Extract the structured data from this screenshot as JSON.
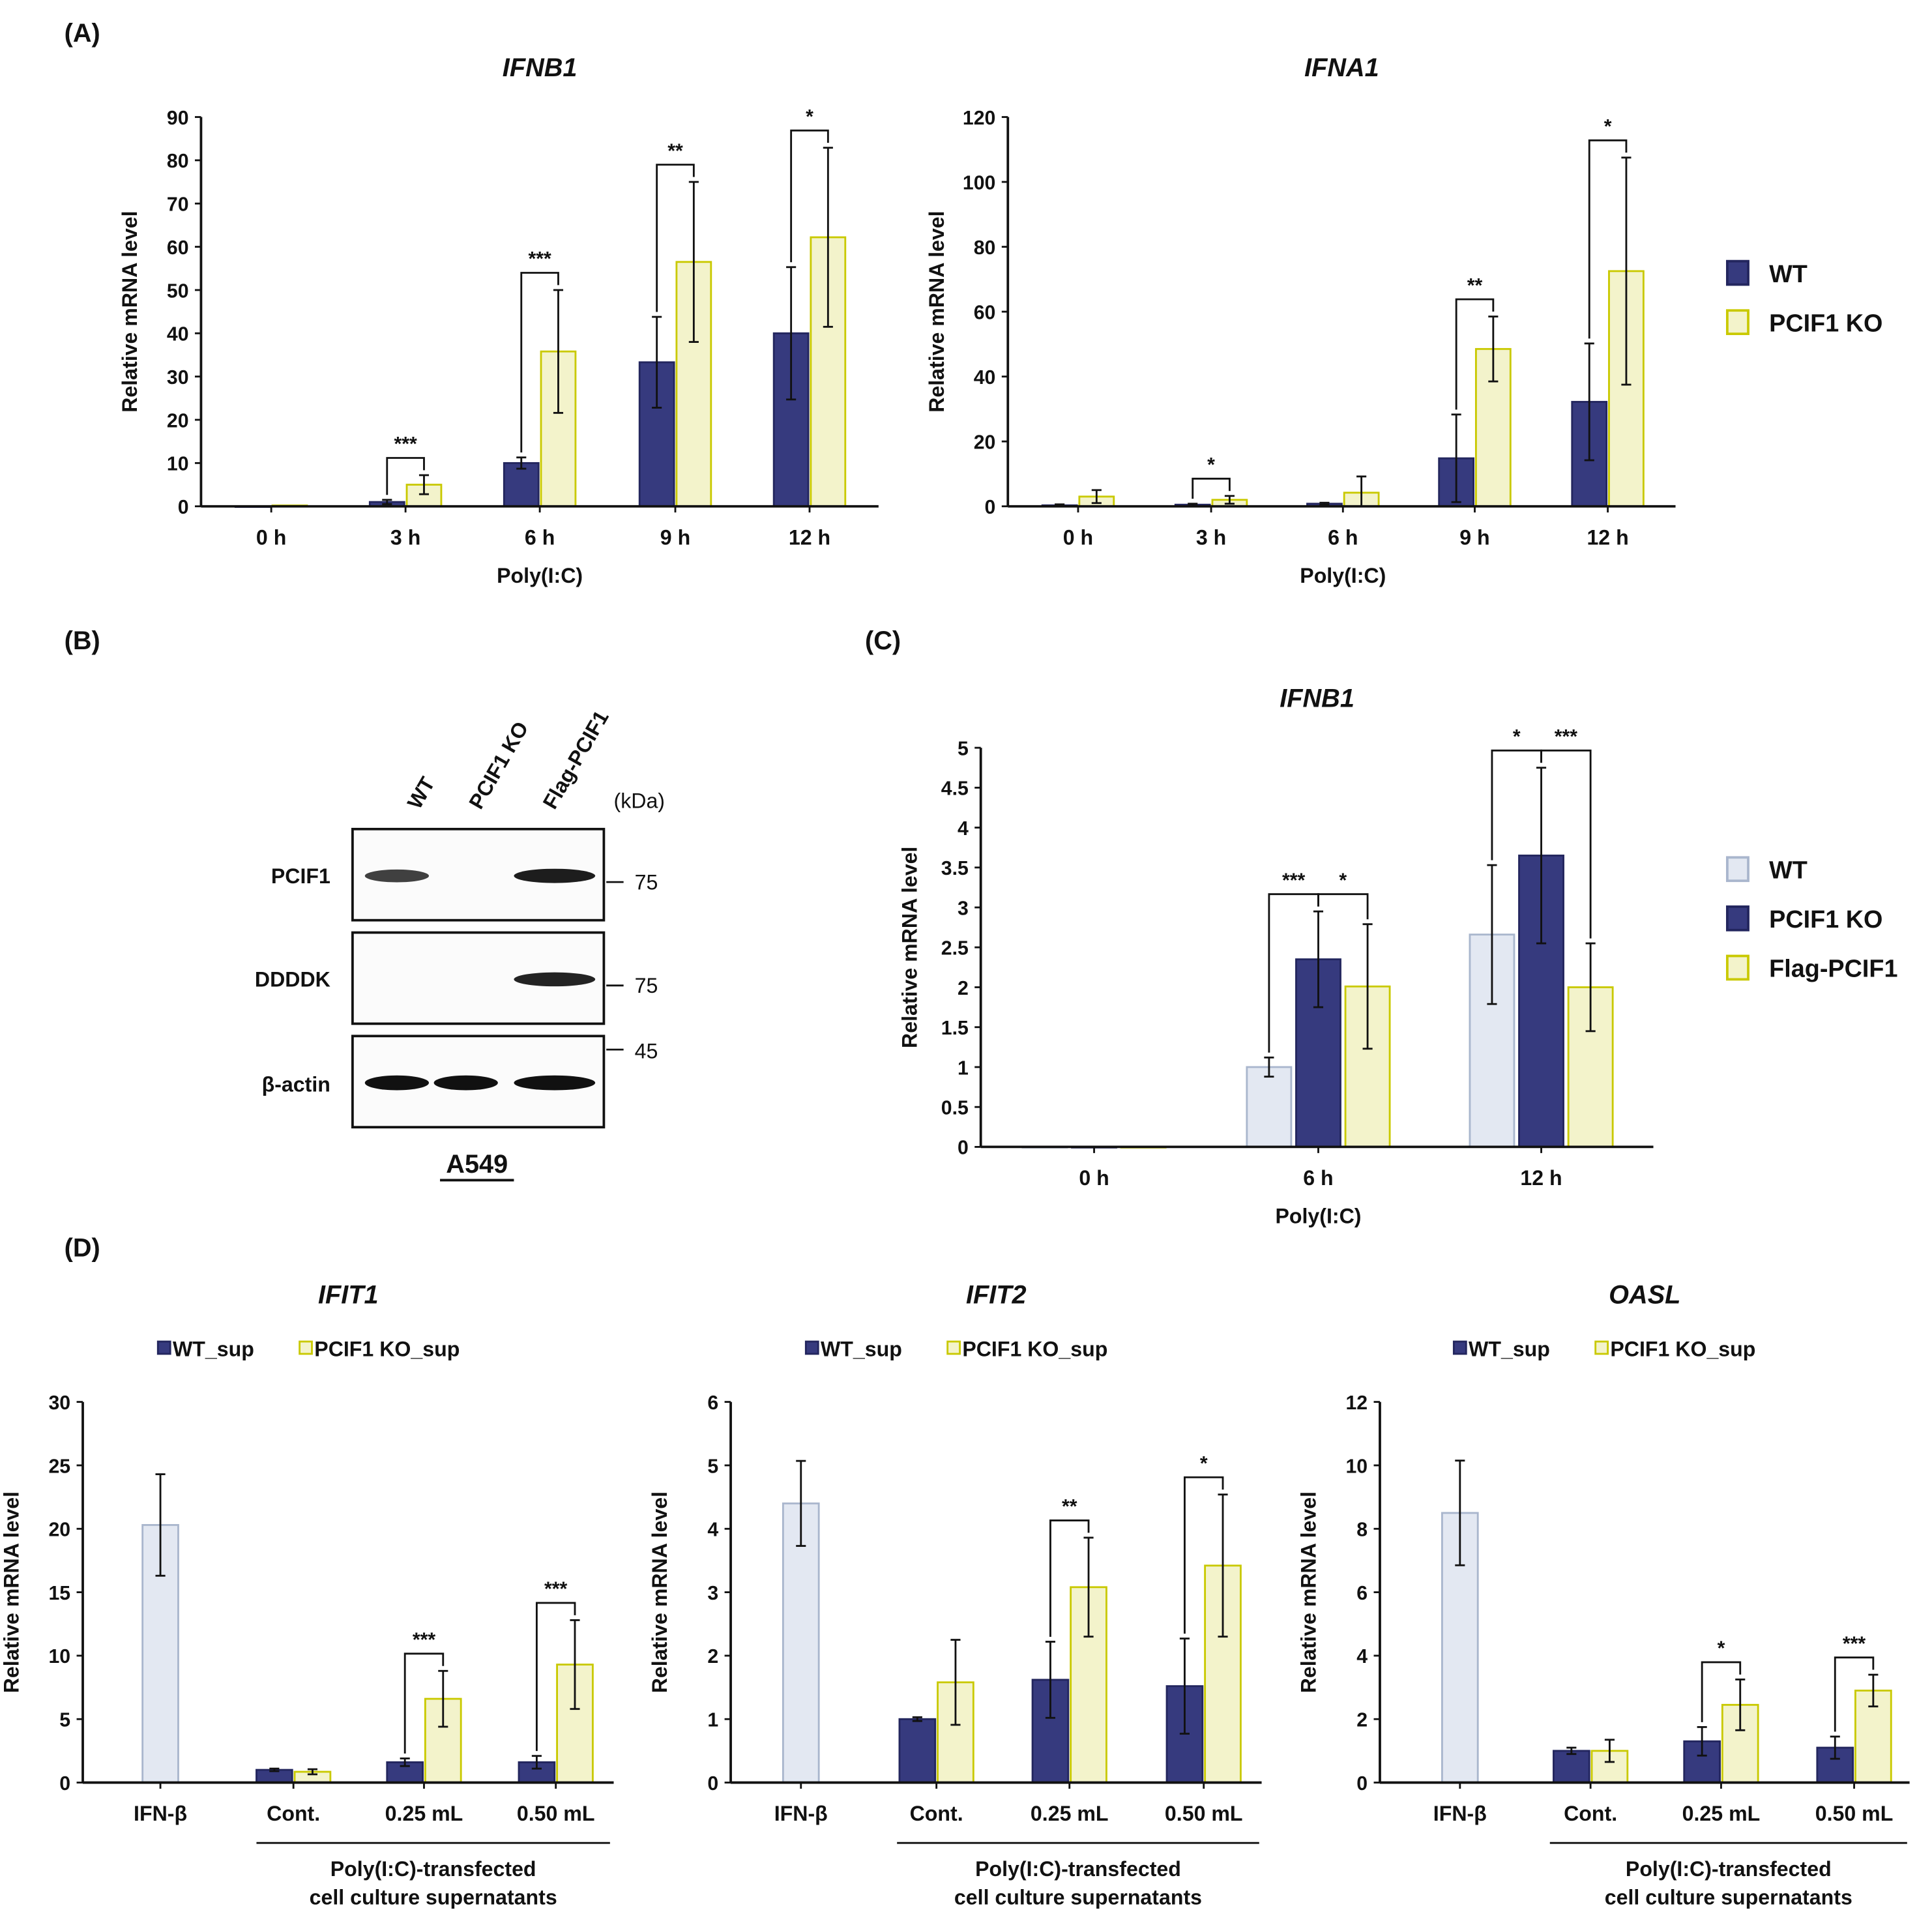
{
  "panels": {
    "A": "(A)",
    "B": "(B)",
    "C": "(C)",
    "D": "(D)"
  },
  "colors": {
    "wt_navy": "#363a7e",
    "ko_yellow_fill": "#f3f3cb",
    "ko_yellow_edge": "#c9c900",
    "wt_light_fill": "#e3e8f2",
    "wt_light_edge": "#a9b6cd",
    "axis": "#111111"
  },
  "blot": {
    "lanes": [
      "WT",
      "PCIF1 KO",
      "Flag-PCIF1"
    ],
    "kda_label": "(kDa)",
    "rows": [
      {
        "label": "PCIF1",
        "marker": "75",
        "bands": [
          0.6,
          0,
          0.9
        ]
      },
      {
        "label": "DDDDK",
        "marker": "75",
        "bands": [
          0,
          0,
          0.85
        ]
      },
      {
        "label": "β-actin",
        "marker": "45",
        "bands": [
          1,
          1,
          1
        ]
      }
    ],
    "cell_line": "A549"
  },
  "chart_data": [
    {
      "id": "A1",
      "type": "bar",
      "title": "IFNB1",
      "xlabel": "Poly(I:C)",
      "ylabel": "Relative mRNA level",
      "ylim": [
        0,
        90
      ],
      "ystep": 10,
      "categories": [
        "0 h",
        "3 h",
        "6 h",
        "9 h",
        "12 h"
      ],
      "series": [
        {
          "name": "WT",
          "style": "navy",
          "values": [
            0,
            1,
            10,
            33.3,
            40
          ],
          "errors": [
            0,
            0.5,
            1.3,
            10.5,
            15.3
          ]
        },
        {
          "name": "PCIF1 KO",
          "style": "yellow",
          "values": [
            0.2,
            5,
            35.8,
            56.5,
            62.2
          ],
          "errors": [
            0,
            2.2,
            14.2,
            18.5,
            20.7
          ]
        }
      ],
      "significance": [
        {
          "cat": 1,
          "from": 0,
          "to": 1,
          "label": "***"
        },
        {
          "cat": 2,
          "from": 0,
          "to": 1,
          "label": "***"
        },
        {
          "cat": 3,
          "from": 0,
          "to": 1,
          "label": "**"
        },
        {
          "cat": 4,
          "from": 0,
          "to": 1,
          "label": "*"
        }
      ]
    },
    {
      "id": "A2",
      "type": "bar",
      "title": "IFNA1",
      "xlabel": "Poly(I:C)",
      "ylabel": "Relative mRNA level",
      "ylim": [
        0,
        120
      ],
      "ystep": 20,
      "categories": [
        "0 h",
        "3 h",
        "6 h",
        "9 h",
        "12 h"
      ],
      "series": [
        {
          "name": "WT",
          "style": "navy",
          "values": [
            0.3,
            0.5,
            0.8,
            14.8,
            32.2
          ],
          "errors": [
            0.3,
            0.3,
            0.3,
            13.5,
            18
          ]
        },
        {
          "name": "PCIF1 KO",
          "style": "yellow",
          "values": [
            3,
            2,
            4.2,
            48.5,
            72.5
          ],
          "errors": [
            2,
            1.2,
            5,
            10,
            35
          ]
        }
      ],
      "significance": [
        {
          "cat": 1,
          "from": 0,
          "to": 1,
          "label": "*"
        },
        {
          "cat": 3,
          "from": 0,
          "to": 1,
          "label": "**"
        },
        {
          "cat": 4,
          "from": 0,
          "to": 1,
          "label": "*"
        }
      ],
      "legend": {
        "placement": "right",
        "entries": [
          {
            "label": "WT",
            "style": "navy"
          },
          {
            "label": "PCIF1 KO",
            "style": "yellow"
          }
        ]
      }
    },
    {
      "id": "C",
      "type": "bar",
      "title": "IFNB1",
      "xlabel": "Poly(I:C)",
      "ylabel": "Relative mRNA level",
      "ylim": [
        0,
        5
      ],
      "ystep": 0.5,
      "categories": [
        "0 h",
        "6 h",
        "12 h"
      ],
      "series": [
        {
          "name": "WT",
          "style": "light",
          "values": [
            0,
            1,
            2.66
          ],
          "errors": [
            0,
            0.12,
            0.87
          ]
        },
        {
          "name": "PCIF1 KO",
          "style": "navy",
          "values": [
            0,
            2.35,
            3.65
          ],
          "errors": [
            0,
            0.6,
            1.1
          ]
        },
        {
          "name": "Flag-PCIF1",
          "style": "yellow",
          "values": [
            0,
            2.01,
            2.0
          ],
          "errors": [
            0,
            0.78,
            0.55
          ]
        }
      ],
      "significance": [
        {
          "cat": 1,
          "from": 0,
          "to": 1,
          "label": "***"
        },
        {
          "cat": 1,
          "from": 1,
          "to": 2,
          "label": "*"
        },
        {
          "cat": 2,
          "from": 0,
          "to": 1,
          "label": "*"
        },
        {
          "cat": 2,
          "from": 1,
          "to": 2,
          "label": "***"
        }
      ],
      "legend": {
        "placement": "right",
        "entries": [
          {
            "label": "WT",
            "style": "light"
          },
          {
            "label": "PCIF1 KO",
            "style": "navy"
          },
          {
            "label": "Flag-PCIF1",
            "style": "yellow"
          }
        ]
      }
    },
    {
      "id": "D1",
      "type": "bar",
      "title": "IFIT1",
      "ylabel": "Relative mRNA level",
      "ylim": [
        0,
        30
      ],
      "ystep": 5,
      "categories": [
        "IFN-β",
        "Cont.",
        "0.25 mL",
        "0.50 mL"
      ],
      "group_label": [
        "Poly(I:C)-transfected",
        "cell culture supernatants"
      ],
      "series": [
        {
          "name": "IFN-β",
          "style": "light",
          "values": [
            20.3,
            null,
            null,
            null
          ],
          "errors": [
            4,
            null,
            null,
            null
          ]
        },
        {
          "name": "WT_sup",
          "style": "navy",
          "values": [
            null,
            1,
            1.6,
            1.6
          ],
          "errors": [
            null,
            0.1,
            0.3,
            0.5
          ]
        },
        {
          "name": "PCIF1 KO_sup",
          "style": "yellow",
          "values": [
            null,
            0.85,
            6.6,
            9.3
          ],
          "errors": [
            null,
            0.2,
            2.2,
            3.5
          ]
        }
      ],
      "significance": [
        {
          "cat": 2,
          "from": 1,
          "to": 2,
          "label": "***"
        },
        {
          "cat": 3,
          "from": 1,
          "to": 2,
          "label": "***"
        }
      ],
      "legend": {
        "placement": "top",
        "entries": [
          {
            "label": "WT_sup",
            "style": "navy"
          },
          {
            "label": "PCIF1 KO_sup",
            "style": "yellow"
          }
        ]
      }
    },
    {
      "id": "D2",
      "type": "bar",
      "title": "IFIT2",
      "ylabel": "Relative mRNA level",
      "ylim": [
        0,
        6
      ],
      "ystep": 1,
      "categories": [
        "IFN-β",
        "Cont.",
        "0.25 mL",
        "0.50 mL"
      ],
      "group_label": [
        "Poly(I:C)-transfected",
        "cell culture supernatants"
      ],
      "series": [
        {
          "name": "IFN-β",
          "style": "light",
          "values": [
            4.4,
            null,
            null,
            null
          ],
          "errors": [
            0.67,
            null,
            null,
            null
          ]
        },
        {
          "name": "WT_sup",
          "style": "navy",
          "values": [
            null,
            1.0,
            1.62,
            1.52
          ],
          "errors": [
            null,
            0.03,
            0.6,
            0.75
          ]
        },
        {
          "name": "PCIF1 KO_sup",
          "style": "yellow",
          "values": [
            null,
            1.58,
            3.08,
            3.42
          ],
          "errors": [
            null,
            0.67,
            0.78,
            1.12
          ]
        }
      ],
      "significance": [
        {
          "cat": 2,
          "from": 1,
          "to": 2,
          "label": "**"
        },
        {
          "cat": 3,
          "from": 1,
          "to": 2,
          "label": "*"
        }
      ],
      "legend": {
        "placement": "top",
        "entries": [
          {
            "label": "WT_sup",
            "style": "navy"
          },
          {
            "label": "PCIF1 KO_sup",
            "style": "yellow"
          }
        ]
      }
    },
    {
      "id": "D3",
      "type": "bar",
      "title": "OASL",
      "ylabel": "Relative mRNA level",
      "ylim": [
        0,
        12
      ],
      "ystep": 2,
      "categories": [
        "IFN-β",
        "Cont.",
        "0.25 mL",
        "0.50 mL"
      ],
      "group_label": [
        "Poly(I:C)-transfected",
        "cell culture supernatants"
      ],
      "series": [
        {
          "name": "IFN-β",
          "style": "light",
          "values": [
            8.5,
            null,
            null,
            null
          ],
          "errors": [
            1.65,
            null,
            null,
            null
          ]
        },
        {
          "name": "WT_sup",
          "style": "navy",
          "values": [
            null,
            1.0,
            1.3,
            1.1
          ],
          "errors": [
            null,
            0.1,
            0.45,
            0.35
          ]
        },
        {
          "name": "PCIF1 KO_sup",
          "style": "yellow",
          "values": [
            null,
            1.0,
            2.45,
            2.9
          ],
          "errors": [
            null,
            0.35,
            0.8,
            0.5
          ]
        }
      ],
      "significance": [
        {
          "cat": 2,
          "from": 1,
          "to": 2,
          "label": "*"
        },
        {
          "cat": 3,
          "from": 1,
          "to": 2,
          "label": "***"
        }
      ],
      "legend": {
        "placement": "top",
        "entries": [
          {
            "label": "WT_sup",
            "style": "navy"
          },
          {
            "label": "PCIF1 KO_sup",
            "style": "yellow"
          }
        ]
      }
    }
  ]
}
